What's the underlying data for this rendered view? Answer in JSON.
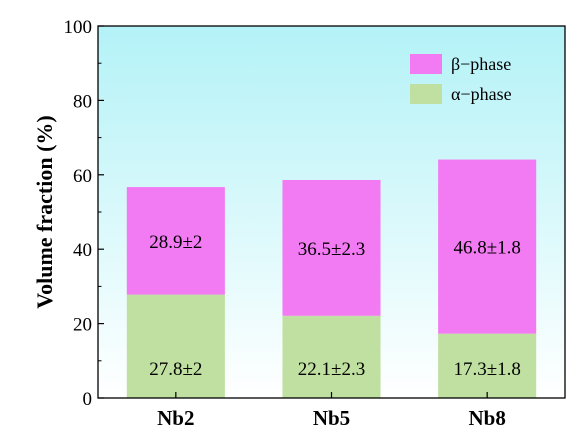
{
  "chart_data": {
    "type": "bar",
    "stacked": true,
    "categories": [
      "Nb2",
      "Nb5",
      "Nb8"
    ],
    "series": [
      {
        "name": "α−phase",
        "values": [
          27.8,
          22.1,
          17.3
        ],
        "labels": [
          "27.8±2",
          "22.1±2.3",
          "17.3±1.8"
        ],
        "color": "#bfe0a0"
      },
      {
        "name": "β−phase",
        "values": [
          28.9,
          36.5,
          46.8
        ],
        "labels": [
          "28.9±2",
          "36.5±2.3",
          "46.8±1.8"
        ],
        "color": "#f27af2"
      }
    ],
    "legend_order": [
      "β−phase",
      "α−phase"
    ],
    "title": "",
    "xlabel": "",
    "ylabel": "Volume fraction (%)",
    "ylim": [
      0,
      100
    ],
    "yticks": [
      0,
      20,
      40,
      60,
      80,
      100
    ],
    "legend_position": "top-right",
    "grid": false,
    "background_gradient": [
      "#ffffff",
      "#b3f2f7"
    ]
  }
}
